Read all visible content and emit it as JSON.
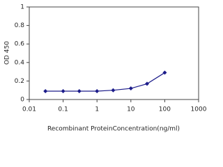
{
  "chart_data": {
    "type": "line",
    "x_label": "Recombinant ProteinConcentration(ng/ml)",
    "y_label": "OD 450",
    "x": [
      0.03,
      0.1,
      0.3,
      1,
      3,
      10,
      30,
      100
    ],
    "series": [
      {
        "color": "#1c1c8a",
        "values": [
          0.09,
          0.09,
          0.09,
          0.09,
          0.1,
          0.12,
          0.17,
          0.29
        ]
      }
    ],
    "xlim": [
      0.01,
      1000
    ],
    "xticks": [
      0.01,
      0.1,
      1,
      10,
      100,
      1000
    ],
    "xscale": "log",
    "ylim": [
      0,
      1
    ],
    "yticks": [
      0,
      0.2,
      0.4,
      0.6,
      0.8,
      1
    ],
    "grid": false
  }
}
